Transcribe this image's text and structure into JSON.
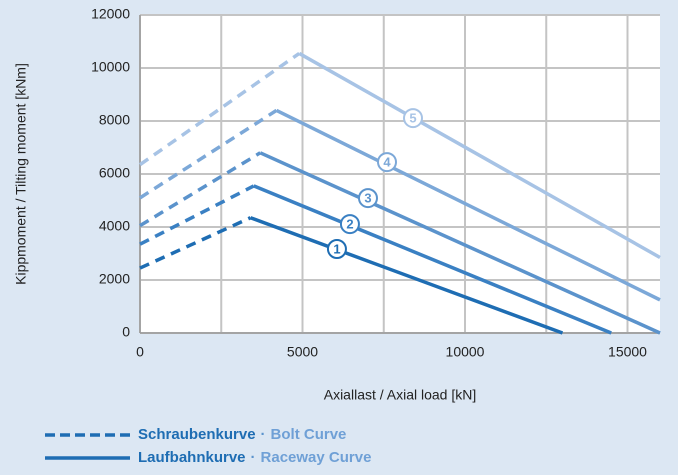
{
  "chart_data": {
    "type": "line",
    "xlabel": "Axiallast / Axial load [kN]",
    "ylabel": "Kippmoment /  Tilting moment [kNm]",
    "xlim": [
      0,
      16000
    ],
    "xticks": [
      0,
      5000,
      10000,
      15000
    ],
    "xminor": [
      2500,
      7500,
      12500
    ],
    "ylim": [
      0,
      12000
    ],
    "yticks": [
      0,
      2000,
      4000,
      6000,
      8000,
      10000,
      12000
    ],
    "grid": true,
    "series": [
      {
        "label": "1",
        "color": "#1e6db3",
        "bolt": {
          "x": [
            0,
            3400
          ],
          "y": [
            2450,
            4350
          ]
        },
        "raceway": {
          "x": [
            3400,
            13000
          ],
          "y": [
            4350,
            0
          ]
        },
        "label_x": 6060,
        "label_y": 3170
      },
      {
        "label": "2",
        "color": "#3a80c3",
        "bolt": {
          "x": [
            0,
            3500
          ],
          "y": [
            3350,
            5550
          ]
        },
        "raceway": {
          "x": [
            3500,
            14500
          ],
          "y": [
            5550,
            0
          ]
        },
        "label_x": 6460,
        "label_y": 4110
      },
      {
        "label": "3",
        "color": "#5b93cc",
        "bolt": {
          "x": [
            0,
            3700
          ],
          "y": [
            4050,
            6800
          ]
        },
        "raceway": {
          "x": [
            3700,
            16000
          ],
          "y": [
            6800,
            0
          ]
        },
        "label_x": 7015,
        "label_y": 5090
      },
      {
        "label": "4",
        "color": "#7ca8d8",
        "bolt": {
          "x": [
            0,
            4200
          ],
          "y": [
            5100,
            8400
          ]
        },
        "raceway": {
          "x": [
            4200,
            16000
          ],
          "y": [
            8400,
            1250
          ]
        },
        "label_x": 7600,
        "label_y": 6450
      },
      {
        "label": "5",
        "color": "#a7c3e5",
        "bolt": {
          "x": [
            0,
            4900
          ],
          "y": [
            6350,
            10550
          ]
        },
        "raceway": {
          "x": [
            4900,
            16000
          ],
          "y": [
            10550,
            2850
          ]
        },
        "label_x": 8400,
        "label_y": 8110
      }
    ],
    "legend": [
      {
        "style": "dashed",
        "name": "Schraubenkurve",
        "separator": "·",
        "name_en": "Bolt Curve"
      },
      {
        "style": "solid",
        "name": "Laufbahnkurve",
        "separator": "·",
        "name_en": "Raceway Curve"
      }
    ]
  }
}
